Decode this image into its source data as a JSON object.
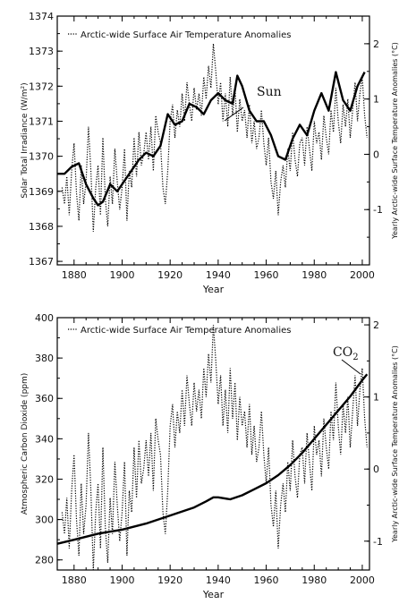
{
  "chart_data": [
    {
      "type": "line",
      "xlabel": "Year",
      "ylabel": "Solar Total Irradiance (W/m²)",
      "ylabel_right": "Yearly Arctic-wide Surface Temperature Anomalies (°C)",
      "legend": "Arctic-wide Surface Air Temperature Anomalies",
      "annotation": "Sun",
      "xlim": [
        1873,
        2003
      ],
      "ylim": [
        1366.9,
        1374
      ],
      "ylim_right": [
        -2.0,
        2.5
      ],
      "x_ticks": [
        "1880",
        "1900",
        "1920",
        "1940",
        "1960",
        "1980",
        "2000"
      ],
      "y_ticks": [
        "1367",
        "1368",
        "1369",
        "1370",
        "1371",
        "1372",
        "1373",
        "1374"
      ],
      "y_ticks_right": [
        "-1",
        "0",
        "1",
        "2"
      ],
      "series": [
        {
          "name": "Sun",
          "style": "solid",
          "axis": "left",
          "x": [
            1873,
            1876,
            1879,
            1882,
            1885,
            1888,
            1890,
            1892,
            1895,
            1898,
            1901,
            1904,
            1907,
            1910,
            1913,
            1916,
            1919,
            1922,
            1925,
            1928,
            1931,
            1934,
            1937,
            1940,
            1943,
            1946,
            1948,
            1950,
            1953,
            1956,
            1959,
            1962,
            1965,
            1968,
            1971,
            1974,
            1977,
            1980,
            1983,
            1986,
            1989,
            1992,
            1995,
            1998,
            2001
          ],
          "y": [
            1369.5,
            1369.5,
            1369.7,
            1369.8,
            1369.2,
            1368.8,
            1368.6,
            1368.7,
            1369.2,
            1369.0,
            1369.3,
            1369.6,
            1369.9,
            1370.1,
            1370.0,
            1370.3,
            1371.2,
            1370.9,
            1371.0,
            1371.5,
            1371.4,
            1371.2,
            1371.6,
            1371.8,
            1371.6,
            1371.5,
            1372.3,
            1372.0,
            1371.3,
            1371.0,
            1371.0,
            1370.6,
            1370.0,
            1369.9,
            1370.5,
            1370.9,
            1370.6,
            1371.3,
            1371.8,
            1371.3,
            1372.4,
            1371.6,
            1371.3,
            1372.0,
            1372.4
          ]
        },
        {
          "name": "Arctic-wide Surface Air Temperature Anomalies",
          "style": "dotted",
          "axis": "right",
          "x": [
            1875,
            1876,
            1877,
            1878,
            1879,
            1880,
            1881,
            1882,
            1883,
            1884,
            1885,
            1886,
            1887,
            1888,
            1889,
            1890,
            1891,
            1892,
            1893,
            1894,
            1895,
            1896,
            1897,
            1898,
            1899,
            1900,
            1901,
            1902,
            1903,
            1904,
            1905,
            1906,
            1907,
            1908,
            1909,
            1910,
            1911,
            1912,
            1913,
            1914,
            1915,
            1916,
            1917,
            1918,
            1919,
            1920,
            1921,
            1922,
            1923,
            1924,
            1925,
            1926,
            1927,
            1928,
            1929,
            1930,
            1931,
            1932,
            1933,
            1934,
            1935,
            1936,
            1937,
            1938,
            1939,
            1940,
            1941,
            1942,
            1943,
            1944,
            1945,
            1946,
            1947,
            1948,
            1949,
            1950,
            1951,
            1952,
            1953,
            1954,
            1955,
            1956,
            1957,
            1958,
            1959,
            1960,
            1961,
            1962,
            1963,
            1964,
            1965,
            1966,
            1967,
            1968,
            1969,
            1970,
            1971,
            1972,
            1973,
            1974,
            1975,
            1976,
            1977,
            1978,
            1979,
            1980,
            1981,
            1982,
            1983,
            1984,
            1985,
            1986,
            1987,
            1988,
            1989,
            1990,
            1991,
            1992,
            1993,
            1994,
            1995,
            1996,
            1997,
            1998,
            1999,
            2000,
            2001,
            2002
          ],
          "y": [
            -0.6,
            -0.9,
            -0.4,
            -1.1,
            -0.3,
            0.2,
            -0.7,
            -1.2,
            -0.2,
            -0.9,
            -0.5,
            0.5,
            -0.3,
            -1.4,
            -0.6,
            -0.2,
            -1.1,
            0.3,
            -0.8,
            -1.3,
            -0.4,
            -0.9,
            0.1,
            -0.5,
            -1.0,
            -0.6,
            0.1,
            -1.2,
            -0.3,
            -0.6,
            0.3,
            -0.4,
            0.4,
            -0.2,
            0.0,
            0.4,
            -0.1,
            0.5,
            -0.3,
            0.7,
            0.4,
            0.2,
            -0.6,
            -0.9,
            -0.3,
            0.6,
            0.9,
            0.3,
            0.8,
            0.5,
            1.1,
            0.6,
            1.3,
            0.9,
            0.6,
            1.2,
            0.8,
            1.1,
            0.7,
            1.4,
            1.0,
            1.6,
            1.2,
            2.0,
            1.5,
            0.9,
            1.3,
            0.6,
            1.1,
            0.5,
            1.4,
            0.7,
            1.2,
            0.4,
            1.0,
            0.6,
            0.8,
            0.3,
            0.9,
            0.2,
            0.6,
            0.1,
            0.3,
            0.8,
            0.2,
            -0.2,
            0.3,
            -0.5,
            -0.8,
            -0.3,
            -1.1,
            -0.5,
            -0.2,
            -0.6,
            0.1,
            -0.3,
            0.4,
            -0.1,
            -0.4,
            0.2,
            0.3,
            -0.2,
            0.5,
            0.1,
            -0.3,
            0.6,
            0.2,
            0.4,
            -0.1,
            0.7,
            0.3,
            0.0,
            0.8,
            0.4,
            1.2,
            0.6,
            0.2,
            0.9,
            0.5,
            1.0,
            0.3,
            0.8,
            1.3,
            0.6,
            1.1,
            1.4,
            0.7,
            0.3
          ]
        }
      ]
    },
    {
      "type": "line",
      "xlabel": "Year",
      "ylabel": "Atmospheric Carbon Dioxide (ppm)",
      "ylabel_right": "Yearly Arctic-wide Surface Temperature Anomalies (°C)",
      "legend": "Arctic-wide Surface Air Temperature Anomalies",
      "annotation": "CO",
      "annotation_sub": "2",
      "xlim": [
        1873,
        2003
      ],
      "ylim": [
        275,
        400
      ],
      "ylim_right": [
        -1.4,
        2.1
      ],
      "x_ticks": [
        "1880",
        "1900",
        "1920",
        "1940",
        "1960",
        "1980",
        "2000"
      ],
      "y_ticks": [
        "280",
        "300",
        "320",
        "340",
        "360",
        "380",
        "400"
      ],
      "y_ticks_right": [
        "-1",
        "0",
        "1",
        "2"
      ],
      "series": [
        {
          "name": "CO2",
          "style": "solid",
          "axis": "left",
          "x": [
            1873,
            1880,
            1890,
            1900,
            1910,
            1920,
            1930,
            1935,
            1938,
            1940,
            1945,
            1950,
            1955,
            1960,
            1965,
            1970,
            1975,
            1980,
            1985,
            1990,
            1995,
            2000,
            2002
          ],
          "y": [
            288,
            290,
            293,
            295,
            298,
            302,
            306,
            309,
            311,
            311,
            310,
            312,
            315,
            318,
            322,
            327,
            333,
            340,
            347,
            354,
            361,
            369,
            372
          ]
        },
        {
          "name": "Arctic-wide Surface Air Temperature Anomalies",
          "style": "dotted",
          "axis": "right",
          "x": [
            1875,
            1876,
            1877,
            1878,
            1879,
            1880,
            1881,
            1882,
            1883,
            1884,
            1885,
            1886,
            1887,
            1888,
            1889,
            1890,
            1891,
            1892,
            1893,
            1894,
            1895,
            1896,
            1897,
            1898,
            1899,
            1900,
            1901,
            1902,
            1903,
            1904,
            1905,
            1906,
            1907,
            1908,
            1909,
            1910,
            1911,
            1912,
            1913,
            1914,
            1915,
            1916,
            1917,
            1918,
            1919,
            1920,
            1921,
            1922,
            1923,
            1924,
            1925,
            1926,
            1927,
            1928,
            1929,
            1930,
            1931,
            1932,
            1933,
            1934,
            1935,
            1936,
            1937,
            1938,
            1939,
            1940,
            1941,
            1942,
            1943,
            1944,
            1945,
            1946,
            1947,
            1948,
            1949,
            1950,
            1951,
            1952,
            1953,
            1954,
            1955,
            1956,
            1957,
            1958,
            1959,
            1960,
            1961,
            1962,
            1963,
            1964,
            1965,
            1966,
            1967,
            1968,
            1969,
            1970,
            1971,
            1972,
            1973,
            1974,
            1975,
            1976,
            1977,
            1978,
            1979,
            1980,
            1981,
            1982,
            1983,
            1984,
            1985,
            1986,
            1987,
            1988,
            1989,
            1990,
            1991,
            1992,
            1993,
            1994,
            1995,
            1996,
            1997,
            1998,
            1999,
            2000,
            2001,
            2002
          ],
          "y": [
            -0.6,
            -0.9,
            -0.4,
            -1.1,
            -0.3,
            0.2,
            -0.7,
            -1.2,
            -0.2,
            -0.9,
            -0.5,
            0.5,
            -0.3,
            -1.4,
            -0.6,
            -0.2,
            -1.1,
            0.3,
            -0.8,
            -1.3,
            -0.4,
            -0.9,
            0.1,
            -0.5,
            -1.0,
            -0.6,
            0.1,
            -1.2,
            -0.3,
            -0.6,
            0.3,
            -0.4,
            0.4,
            -0.2,
            0.0,
            0.4,
            -0.1,
            0.5,
            -0.3,
            0.7,
            0.4,
            0.2,
            -0.6,
            -0.9,
            -0.3,
            0.6,
            0.9,
            0.3,
            0.8,
            0.5,
            1.1,
            0.6,
            1.3,
            0.9,
            0.6,
            1.2,
            0.8,
            1.1,
            0.7,
            1.4,
            1.0,
            1.6,
            1.2,
            2.0,
            1.5,
            0.9,
            1.3,
            0.6,
            1.1,
            0.5,
            1.4,
            0.7,
            1.2,
            0.4,
            1.0,
            0.6,
            0.8,
            0.3,
            0.9,
            0.2,
            0.6,
            0.1,
            0.3,
            0.8,
            0.2,
            -0.2,
            0.3,
            -0.5,
            -0.8,
            -0.3,
            -1.1,
            -0.5,
            -0.2,
            -0.6,
            0.1,
            -0.3,
            0.4,
            -0.1,
            -0.4,
            0.2,
            0.3,
            -0.2,
            0.5,
            0.1,
            -0.3,
            0.6,
            0.2,
            0.4,
            -0.1,
            0.7,
            0.3,
            0.0,
            0.8,
            0.4,
            1.2,
            0.6,
            0.2,
            0.9,
            0.5,
            1.0,
            0.3,
            0.8,
            1.3,
            0.6,
            1.1,
            1.4,
            0.7,
            0.3
          ]
        }
      ]
    }
  ]
}
